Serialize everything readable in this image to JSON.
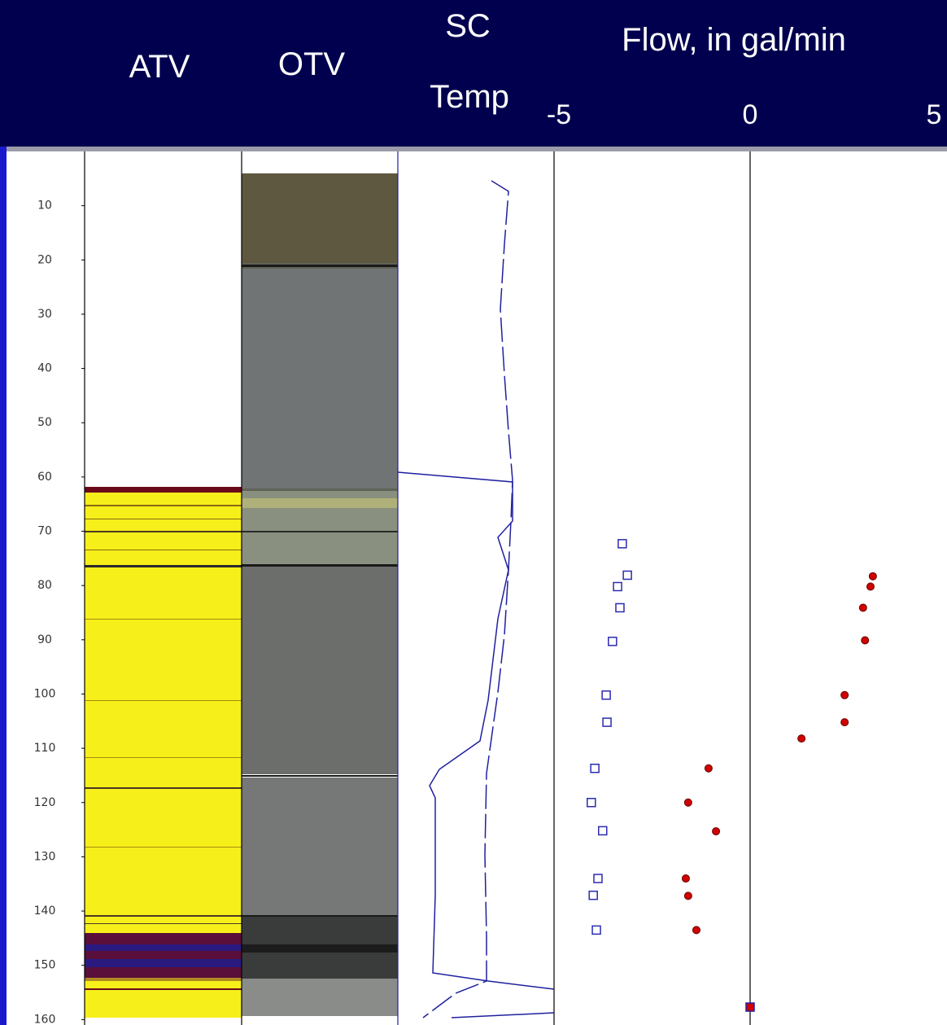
{
  "chart_data": {
    "type": "scatter",
    "headers": {
      "atv": "ATV",
      "otv": "OTV",
      "sc": "SC",
      "temp": "Temp",
      "flow": "Flow, in gal/min"
    },
    "xlim": [
      -5,
      5
    ],
    "xticks": [
      -5,
      0,
      5
    ],
    "ylim": [
      0,
      161
    ],
    "yticks": [
      10,
      20,
      30,
      40,
      50,
      60,
      70,
      80,
      90,
      100,
      110,
      120,
      130,
      140,
      150,
      160
    ],
    "y_reversed": true,
    "series": [
      {
        "color": "#2b2bb0",
        "marker": "square-open",
        "x": [
          -3.26,
          -3.13,
          -3.38,
          -3.32,
          -3.51,
          -3.67,
          -3.65,
          -3.96,
          -4.05,
          -3.76,
          -3.88,
          -4.0,
          -3.92
        ],
        "y": [
          72.3,
          78.1,
          80.2,
          84.1,
          90.3,
          100.2,
          105.2,
          113.7,
          120.0,
          125.2,
          134.0,
          137.1,
          143.5
        ]
      },
      {
        "color": "#d00000",
        "marker": "circle",
        "x": [
          3.13,
          3.07,
          2.88,
          2.93,
          2.41,
          2.41,
          1.31,
          -1.06,
          -1.58,
          -0.87,
          -1.64,
          -1.58,
          -1.37
        ],
        "y": [
          78.3,
          80.2,
          84.1,
          90.1,
          100.2,
          105.2,
          108.2,
          113.7,
          120.0,
          125.3,
          134.0,
          137.2,
          143.5
        ]
      },
      {
        "color": "#d00000",
        "marker": "square",
        "x": [
          0
        ],
        "y": [
          157.7
        ]
      }
    ]
  }
}
